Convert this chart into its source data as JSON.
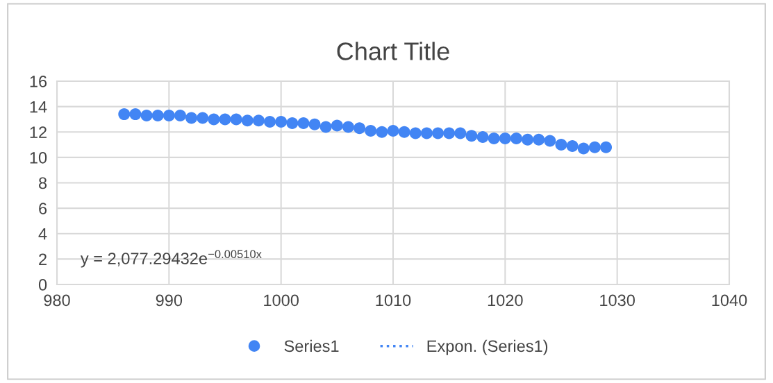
{
  "chart_data": {
    "type": "scatter",
    "title": "Chart Title",
    "xlim": [
      980,
      1040
    ],
    "xticks": [
      980,
      990,
      1000,
      1010,
      1020,
      1030,
      1040
    ],
    "ylim": [
      0,
      16
    ],
    "yticks": [
      0,
      2,
      4,
      6,
      8,
      10,
      12,
      14,
      16
    ],
    "grid": true,
    "legend": "bottom",
    "marker": "circle",
    "annotations": [
      "y = 2,077.29432e$^{−0.00510x}$"
    ],
    "series": [
      {
        "name": "Series1",
        "color": "#4285f4",
        "x": [
          986,
          987,
          988,
          989,
          990,
          991,
          992,
          993,
          994,
          995,
          996,
          997,
          998,
          999,
          1000,
          1001,
          1002,
          1003,
          1004,
          1005,
          1006,
          1007,
          1008,
          1009,
          1010,
          1011,
          1012,
          1013,
          1014,
          1015,
          1016,
          1017,
          1018,
          1019,
          1020,
          1021,
          1022,
          1023,
          1024,
          1025,
          1026,
          1027,
          1028,
          1029
        ],
        "values": [
          13.4,
          13.4,
          13.3,
          13.3,
          13.3,
          13.3,
          13.1,
          13.1,
          13.0,
          13.0,
          13.0,
          12.9,
          12.9,
          12.8,
          12.8,
          12.7,
          12.7,
          12.6,
          12.4,
          12.5,
          12.4,
          12.3,
          12.1,
          12.0,
          12.1,
          12.0,
          11.9,
          11.9,
          11.9,
          11.9,
          11.9,
          11.7,
          11.6,
          11.5,
          11.5,
          11.5,
          11.4,
          11.4,
          11.3,
          11.0,
          10.9,
          10.7,
          10.8,
          10.8
        ]
      },
      {
        "name": "Expon. (Series1)",
        "type": "line",
        "line_style": "dotted",
        "color": "#4285f4"
      }
    ]
  }
}
